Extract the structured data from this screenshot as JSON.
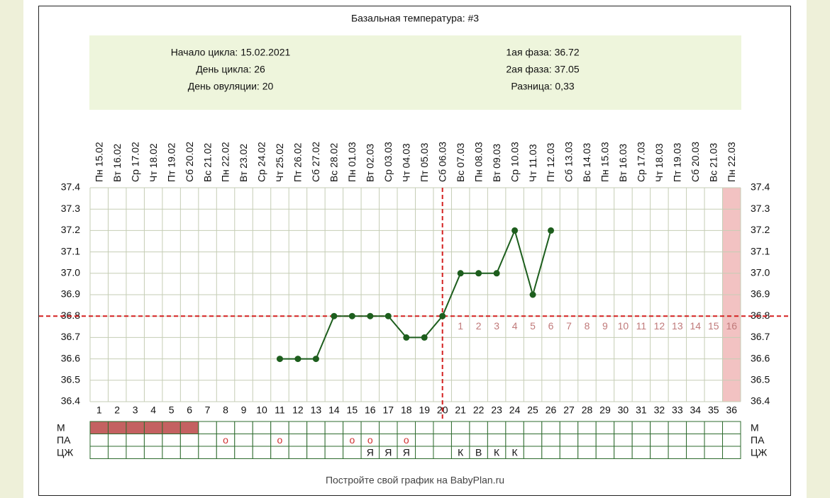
{
  "chart_data": {
    "type": "line",
    "title": "Базальная температура: #3",
    "info_left": [
      "Начало цикла: 15.02.2021",
      "День цикла: 26",
      "День овуляции: 20"
    ],
    "info_right": [
      "1ая фаза: 36.72",
      "2ая фаза: 37.05",
      "Разница: 0,33"
    ],
    "dates": [
      "Пн 15.02",
      "Вт 16.02",
      "Ср 17.02",
      "Чт 18.02",
      "Пт 19.02",
      "Сб 20.02",
      "Вс 21.02",
      "Пн 22.02",
      "Вт 23.02",
      "Ср 24.02",
      "Чт 25.02",
      "Пт 26.02",
      "Сб 27.02",
      "Вс 28.02",
      "Пн 01.03",
      "Вт 02.03",
      "Ср 03.03",
      "Чт 04.03",
      "Пт 05.03",
      "Сб 06.03",
      "Вс 07.03",
      "Пн 08.03",
      "Вт 09.03",
      "Ср 10.03",
      "Чт 11.03",
      "Пт 12.03",
      "Сб 13.03",
      "Вс 14.03",
      "Пн 15.03",
      "Вт 16.03",
      "Ср 17.03",
      "Чт 18.03",
      "Пт 19.03",
      "Сб 20.03",
      "Вс 21.03",
      "Пн 22.03"
    ],
    "categories": [
      1,
      2,
      3,
      4,
      5,
      6,
      7,
      8,
      9,
      10,
      11,
      12,
      13,
      14,
      15,
      16,
      17,
      18,
      19,
      20,
      21,
      22,
      23,
      24,
      25,
      26,
      27,
      28,
      29,
      30,
      31,
      32,
      33,
      34,
      35,
      36
    ],
    "series": [
      {
        "name": "Температура",
        "color": "#1d5e1d",
        "values": [
          null,
          null,
          null,
          null,
          null,
          null,
          null,
          null,
          null,
          null,
          36.6,
          36.6,
          36.6,
          36.8,
          36.8,
          36.8,
          36.8,
          36.7,
          36.7,
          36.8,
          37.0,
          37.0,
          37.0,
          37.2,
          36.9,
          37.2,
          null,
          null,
          null,
          null,
          null,
          null,
          null,
          null,
          null,
          null
        ]
      }
    ],
    "ylim": [
      36.4,
      37.4
    ],
    "yticks": [
      36.4,
      36.5,
      36.6,
      36.7,
      36.8,
      36.9,
      {
        "value": 37,
        "label": "37.0"
      },
      37.1,
      37.2,
      37.3,
      37.4
    ],
    "grid": true,
    "coverline": 36.8,
    "ovulation_day": 20,
    "luteal_days": [
      1,
      2,
      3,
      4,
      5,
      6,
      7,
      8,
      9,
      10,
      11,
      12,
      13,
      14,
      15,
      16
    ],
    "highlight_days": [
      36
    ],
    "rows": [
      {
        "label": "М",
        "filled": [
          true,
          true,
          true,
          true,
          true,
          true,
          false,
          false,
          false,
          false,
          false,
          false,
          false,
          false,
          false,
          false,
          false,
          false,
          false,
          false,
          false,
          false,
          false,
          false,
          false,
          false,
          false,
          false,
          false,
          false,
          false,
          false,
          false,
          false,
          false,
          false
        ]
      },
      {
        "label": "ПА",
        "cells": [
          null,
          null,
          null,
          null,
          null,
          null,
          null,
          "о",
          null,
          null,
          "о",
          null,
          null,
          null,
          "о",
          "о",
          null,
          "о",
          null,
          null,
          null,
          null,
          null,
          null,
          null,
          null,
          null,
          null,
          null,
          null,
          null,
          null,
          null,
          null,
          null,
          null
        ]
      },
      {
        "label": "ЦЖ",
        "cells": [
          null,
          null,
          null,
          null,
          null,
          null,
          null,
          null,
          null,
          null,
          null,
          null,
          null,
          null,
          null,
          "Я",
          "Я",
          "Я",
          null,
          null,
          "К",
          "В",
          "К",
          "К",
          null,
          null,
          null,
          null,
          null,
          null,
          null,
          null,
          null,
          null,
          null,
          null
        ]
      }
    ],
    "footer": "Постройте свой график на BabyPlan.ru"
  }
}
